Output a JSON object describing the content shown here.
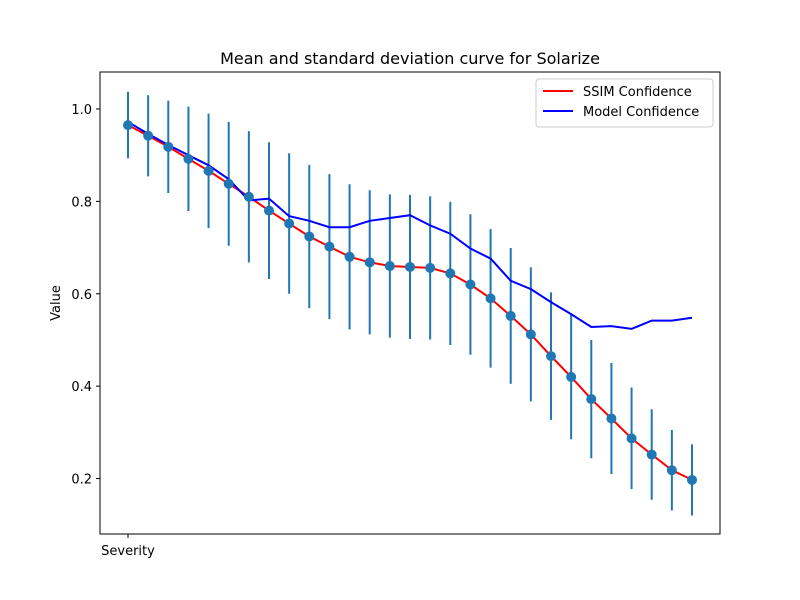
{
  "chart_data": {
    "type": "line",
    "title": "Mean and standard deviation curve for Solarize",
    "xlabel": "Severity",
    "ylabel": "Value",
    "ylim": [
      0.08,
      1.08
    ],
    "yticks": [
      0.2,
      0.4,
      0.6,
      0.8,
      1.0
    ],
    "ytick_labels": [
      "0.2",
      "0.4",
      "0.6",
      "0.8",
      "1.0"
    ],
    "xtick_labels": [
      "Severity"
    ],
    "legend_position": "top-right",
    "grid": false,
    "x": [
      0,
      1,
      2,
      3,
      4,
      5,
      6,
      7,
      8,
      9,
      10,
      11,
      12,
      13,
      14,
      15,
      16,
      17,
      18,
      19,
      20,
      21,
      22,
      23,
      24,
      25,
      26,
      27,
      28
    ],
    "series": [
      {
        "name": "SSIM Confidence",
        "color": "#ff0000",
        "values": [
          0.965,
          0.942,
          0.918,
          0.892,
          0.866,
          0.838,
          0.81,
          0.78,
          0.752,
          0.724,
          0.702,
          0.68,
          0.668,
          0.66,
          0.658,
          0.656,
          0.644,
          0.62,
          0.59,
          0.552,
          0.512,
          0.465,
          0.42,
          0.372,
          0.33,
          0.287,
          0.252,
          0.218,
          0.197
        ],
        "std": [
          0.072,
          0.088,
          0.1,
          0.113,
          0.124,
          0.134,
          0.142,
          0.148,
          0.152,
          0.155,
          0.157,
          0.157,
          0.156,
          0.155,
          0.156,
          0.155,
          0.155,
          0.152,
          0.15,
          0.147,
          0.145,
          0.138,
          0.135,
          0.128,
          0.12,
          0.11,
          0.098,
          0.087,
          0.077
        ]
      },
      {
        "name": "Model Confidence",
        "color": "#0000ff",
        "values": [
          0.972,
          0.946,
          0.922,
          0.9,
          0.878,
          0.848,
          0.802,
          0.806,
          0.768,
          0.758,
          0.744,
          0.744,
          0.758,
          0.764,
          0.77,
          0.748,
          0.73,
          0.698,
          0.676,
          0.628,
          0.61,
          0.582,
          0.556,
          0.528,
          0.53,
          0.524,
          0.542,
          0.542,
          0.548
        ]
      }
    ],
    "errorbar_color": "#1f77b4",
    "marker_color": "#1f77b4"
  }
}
